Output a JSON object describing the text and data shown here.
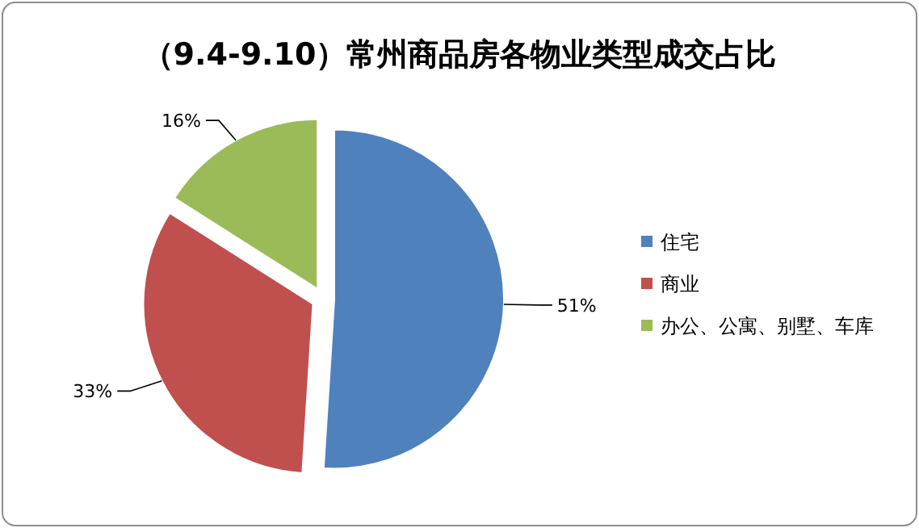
{
  "chart_data": {
    "type": "pie",
    "title": "（9.4-9.10）常州商品房各物业类型成交占比",
    "categories": [
      "住宅",
      "商业",
      "办公、公寓、别墅、车库"
    ],
    "values": [
      51,
      33,
      16
    ],
    "colors": [
      "#4f81bd",
      "#c0504d",
      "#9bbb59"
    ],
    "value_labels": [
      "51%",
      "33%",
      "16%"
    ],
    "legend": "right"
  }
}
